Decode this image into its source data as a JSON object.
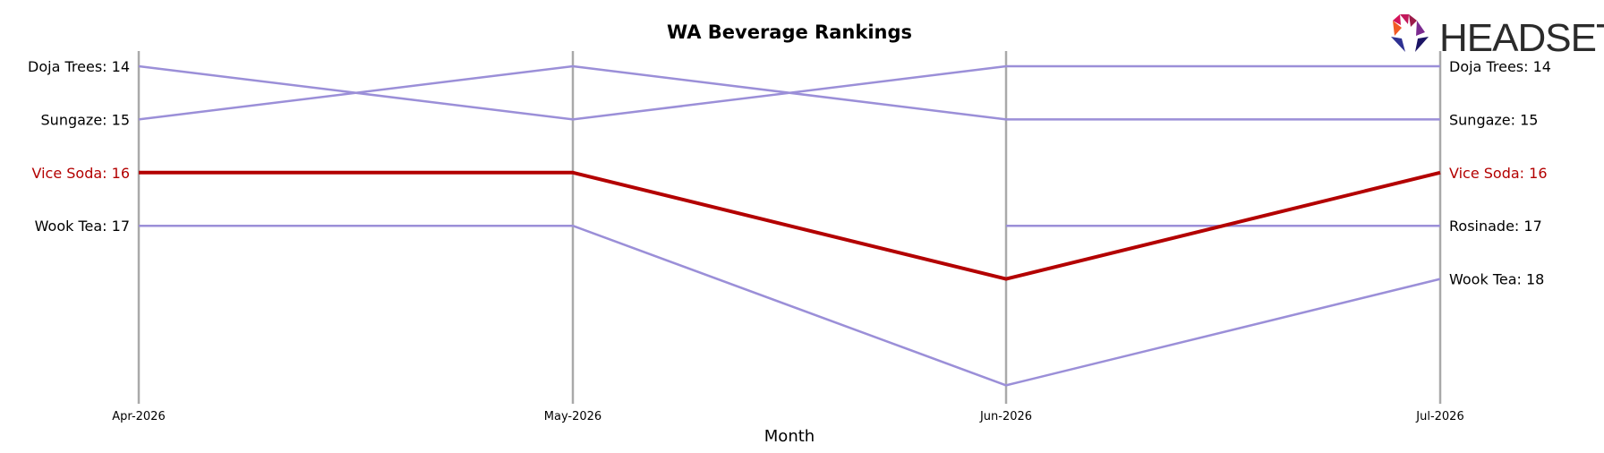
{
  "logo": {
    "text": "HEADSET"
  },
  "chart_data": {
    "type": "line",
    "title": "WA Beverage Rankings",
    "xlabel": "Month",
    "ylabel": "",
    "categories": [
      "Apr-2026",
      "May-2026",
      "Jun-2026",
      "Jul-2026"
    ],
    "y_axis_inverted": true,
    "ylim": [
      20,
      14
    ],
    "highlight_color": "#b30000",
    "default_color": "#9b8fd8",
    "series": [
      {
        "name": "Doja Trees",
        "values": [
          14,
          15,
          14,
          14
        ],
        "highlight": false,
        "left_label": "Doja Trees: 14",
        "right_label": "Doja Trees: 14"
      },
      {
        "name": "Sungaze",
        "values": [
          15,
          14,
          15,
          15
        ],
        "highlight": false,
        "left_label": "Sungaze: 15",
        "right_label": "Sungaze: 15"
      },
      {
        "name": "Vice Soda",
        "values": [
          16,
          16,
          18,
          16
        ],
        "highlight": true,
        "left_label": "Vice Soda: 16",
        "right_label": "Vice Soda: 16"
      },
      {
        "name": "Wook Tea",
        "values": [
          17,
          17,
          20,
          18
        ],
        "highlight": false,
        "left_label": "Wook Tea: 17",
        "right_label": "Wook Tea: 18"
      },
      {
        "name": "Rosinade",
        "values": [
          null,
          null,
          17,
          17
        ],
        "highlight": false,
        "left_label": "",
        "right_label": "Rosinade: 17"
      }
    ]
  }
}
